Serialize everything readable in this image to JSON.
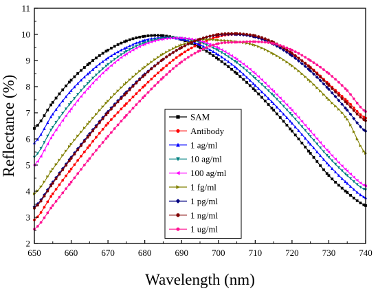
{
  "chart_data": {
    "type": "line",
    "xlabel": "Wavelength (nm)",
    "ylabel": "Reflectance (%)",
    "xlim": [
      650,
      740
    ],
    "ylim": [
      2,
      11
    ],
    "x_ticks": [
      "650",
      "660",
      "670",
      "680",
      "690",
      "700",
      "710",
      "720",
      "730",
      "740"
    ],
    "y_ticks": [
      "2",
      "3",
      "4",
      "5",
      "6",
      "7",
      "8",
      "9",
      "10",
      "11"
    ],
    "legend_position": "center",
    "x": [
      650,
      655,
      660,
      665,
      670,
      675,
      680,
      685,
      690,
      695,
      700,
      705,
      710,
      715,
      720,
      725,
      730,
      735,
      740
    ],
    "series": [
      {
        "name": "SAM",
        "color": "#000000",
        "marker": "square",
        "values": [
          6.4,
          7.4,
          8.25,
          8.9,
          9.4,
          9.75,
          9.93,
          9.95,
          9.8,
          9.5,
          9.05,
          8.5,
          7.85,
          7.1,
          6.3,
          5.45,
          4.6,
          3.95,
          3.45
        ]
      },
      {
        "name": "Antibody",
        "color": "#ff0000",
        "marker": "circle",
        "values": [
          2.9,
          3.9,
          4.85,
          5.75,
          6.6,
          7.35,
          8.05,
          8.7,
          9.25,
          9.65,
          9.92,
          10.0,
          9.9,
          9.65,
          9.25,
          8.75,
          8.1,
          7.45,
          6.8
        ]
      },
      {
        "name": "1 ag/ml",
        "color": "#0000ff",
        "marker": "triangle-up",
        "values": [
          5.85,
          6.95,
          7.85,
          8.55,
          9.1,
          9.5,
          9.78,
          9.88,
          9.82,
          9.6,
          9.22,
          8.7,
          8.05,
          7.35,
          6.6,
          5.8,
          5.0,
          4.3,
          3.75
        ]
      },
      {
        "name": "10 ag/ml",
        "color": "#008080",
        "marker": "triangle-down",
        "values": [
          5.3,
          6.45,
          7.4,
          8.2,
          8.85,
          9.35,
          9.68,
          9.85,
          9.85,
          9.7,
          9.38,
          8.92,
          8.32,
          7.65,
          6.9,
          6.1,
          5.3,
          4.6,
          4.05
        ]
      },
      {
        "name": "100 ag/ml",
        "color": "#ff00ff",
        "marker": "triangle-left",
        "values": [
          5.0,
          6.15,
          7.15,
          8.0,
          8.7,
          9.25,
          9.62,
          9.82,
          9.86,
          9.75,
          9.48,
          9.05,
          8.5,
          7.82,
          7.1,
          6.3,
          5.5,
          4.78,
          4.2
        ]
      },
      {
        "name": "1 fg/ml",
        "color": "#808000",
        "marker": "triangle-right",
        "values": [
          3.9,
          4.85,
          5.8,
          6.65,
          7.45,
          8.15,
          8.75,
          9.25,
          9.6,
          9.8,
          9.78,
          9.72,
          9.58,
          9.25,
          8.8,
          8.2,
          7.5,
          6.75,
          5.45
        ]
      },
      {
        "name": "1 pg/ml",
        "color": "#000080",
        "marker": "diamond",
        "values": [
          3.4,
          4.35,
          5.3,
          6.2,
          7.05,
          7.8,
          8.48,
          9.05,
          9.5,
          9.82,
          9.98,
          10.0,
          9.9,
          9.62,
          9.18,
          8.6,
          7.9,
          7.1,
          6.3
        ]
      },
      {
        "name": "1 ng/ml",
        "color": "#800000",
        "marker": "hexagon",
        "values": [
          3.35,
          4.3,
          5.25,
          6.15,
          7.0,
          7.75,
          8.45,
          9.05,
          9.5,
          9.82,
          10.0,
          10.03,
          9.95,
          9.7,
          9.28,
          8.72,
          8.05,
          7.35,
          6.7
        ]
      },
      {
        "name": "1 ug/ml",
        "color": "#ff1493",
        "marker": "circle",
        "values": [
          2.55,
          3.45,
          4.35,
          5.25,
          6.1,
          6.9,
          7.65,
          8.35,
          8.95,
          9.38,
          9.65,
          9.7,
          9.72,
          9.65,
          9.4,
          9.0,
          8.5,
          7.85,
          7.05
        ]
      }
    ]
  }
}
